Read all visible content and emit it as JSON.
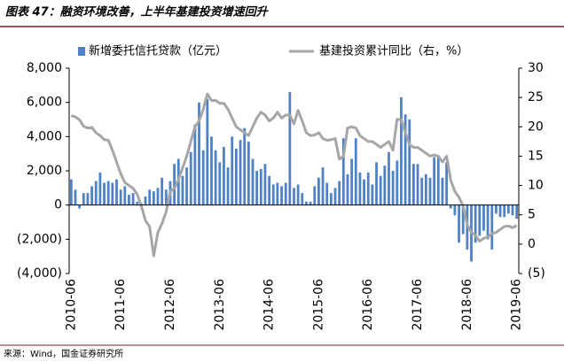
{
  "chart_data": {
    "type": "bar-line",
    "title": "图表 47：融资环境改善，上半年基建投资增速回升",
    "source": "来源：Wind，国金证券研究所",
    "categories": [
      "2010-06",
      null,
      null,
      null,
      null,
      null,
      null,
      null,
      null,
      null,
      null,
      null,
      "2011-06",
      null,
      null,
      null,
      null,
      null,
      null,
      null,
      null,
      null,
      null,
      null,
      "2012-06",
      null,
      null,
      null,
      null,
      null,
      null,
      null,
      null,
      null,
      null,
      null,
      "2013-06",
      null,
      null,
      null,
      null,
      null,
      null,
      null,
      null,
      null,
      null,
      null,
      "2014-06",
      null,
      null,
      null,
      null,
      null,
      null,
      null,
      null,
      null,
      null,
      null,
      "2015-06",
      null,
      null,
      null,
      null,
      null,
      null,
      null,
      null,
      null,
      null,
      null,
      "2016-06",
      null,
      null,
      null,
      null,
      null,
      null,
      null,
      null,
      null,
      null,
      null,
      "2017-06",
      null,
      null,
      null,
      null,
      null,
      null,
      null,
      null,
      null,
      null,
      null,
      "2018-06",
      null,
      null,
      null,
      null,
      null,
      null,
      null,
      null,
      null,
      null,
      null,
      "2019-06"
    ],
    "series": [
      {
        "name": "新增委托信托贷款（亿元）",
        "type": "bar",
        "color": "#4f81c7",
        "values": [
          1500,
          900,
          -200,
          700,
          700,
          1100,
          1400,
          1900,
          1300,
          1400,
          1300,
          1500,
          900,
          1100,
          600,
          700,
          200,
          100,
          500,
          900,
          800,
          1000,
          1600,
          900,
          1400,
          2400,
          2700,
          1700,
          2200,
          3100,
          4700,
          6000,
          3200,
          6200,
          4000,
          3200,
          2500,
          3400,
          2200,
          4000,
          3300,
          3800,
          4500,
          3700,
          2700,
          2000,
          2100,
          2400,
          1700,
          1200,
          1300,
          1100,
          1300,
          6600,
          1000,
          1200,
          700,
          200,
          200,
          1100,
          1600,
          2200,
          1300,
          700,
          1000,
          1400,
          3900,
          1800,
          2700,
          3900,
          1900,
          1500,
          1900,
          1200,
          2500,
          1700,
          2300,
          3100,
          2000,
          2600,
          6300,
          5300,
          5000,
          2400,
          2400,
          1600,
          1800,
          1600,
          2800,
          2800,
          1600,
          2500,
          -200,
          -600,
          -2200,
          -1700,
          -2600,
          -3300,
          -2200,
          -1800,
          -1500,
          -2000,
          -2600,
          -500,
          -700,
          -700,
          -500,
          -600,
          -800
        ]
      },
      {
        "name": "基建投资累计同比（右，%）",
        "type": "line",
        "axis": "y2",
        "color": "#a6a6a6",
        "values": [
          21.9,
          21.7,
          21.2,
          20.1,
          19.8,
          19.9,
          19.0,
          18.5,
          17.8,
          17.7,
          16,
          14,
          12,
          10.5,
          10,
          9.5,
          8.5,
          6.5,
          4,
          3,
          -2,
          2,
          3.5,
          5.5,
          9,
          9.5,
          11,
          13,
          15,
          17.5,
          20,
          21,
          23,
          25.6,
          24.5,
          24.5,
          24,
          24,
          23,
          21.5,
          20,
          19.5,
          19,
          18.5,
          20,
          21.5,
          22.5,
          22,
          21,
          21.5,
          22.5,
          21.5,
          22,
          22,
          20.5,
          22.8,
          21,
          19,
          18.5,
          18.6,
          19,
          18,
          17.7,
          17.8,
          18,
          14.5,
          15,
          19.8,
          20,
          19.8,
          18.5,
          18,
          17.5,
          17.5,
          17,
          16.5,
          17,
          17.5,
          16,
          21.3,
          21.2,
          19,
          17,
          16.5,
          16.5,
          16,
          15.5,
          15,
          15.2,
          15,
          14,
          15,
          10.9,
          9,
          8,
          6.5,
          3.3,
          2,
          1.5,
          0.5,
          1,
          1.2,
          1.8,
          2,
          2.5,
          3,
          3.1,
          2.8,
          3.2
        ]
      }
    ],
    "ylim": [
      -4000,
      8000
    ],
    "yticks": [
      {
        "value": -4000,
        "label": "(4,000)"
      },
      {
        "value": -2000,
        "label": "(2,000)"
      },
      0,
      {
        "value": 2000,
        "label": "2,000"
      },
      {
        "value": 4000,
        "label": "4,000"
      },
      {
        "value": 6000,
        "label": "6,000"
      },
      {
        "value": 8000,
        "label": "8,000"
      }
    ],
    "y2lim": [
      -5,
      30
    ],
    "y2ticks": [
      {
        "value": -5,
        "label": "(5)"
      },
      0,
      5,
      10,
      15,
      20,
      25,
      30
    ],
    "negative_label_color": "#e00000"
  }
}
